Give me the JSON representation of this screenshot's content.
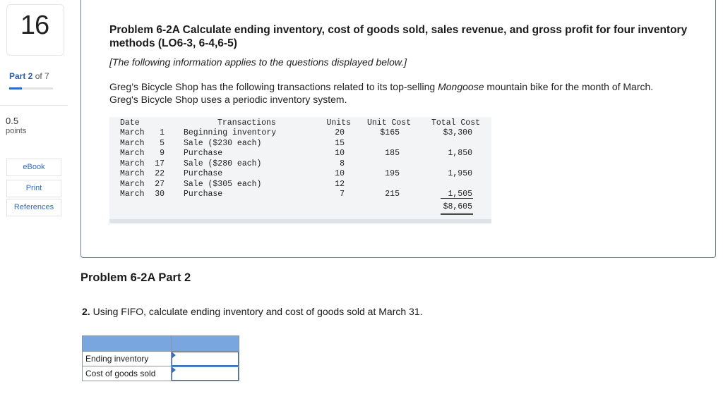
{
  "sidebar": {
    "question_number": "16",
    "part_prefix": "Part 2",
    "part_suffix": "of 7",
    "part_progress": 0.2857,
    "points_value": "0.5",
    "points_label": "points",
    "buttons": {
      "ebook": "eBook",
      "print": "Print",
      "references": "References"
    }
  },
  "problem": {
    "title": "Problem 6-2A Calculate ending inventory, cost of goods sold, sales revenue, and gross profit for four inventory methods (LO6-3, 6-4,6-5)",
    "note": "[The following information applies to the questions displayed below.]",
    "paragraph_before": "Greg’s Bicycle Shop has the following transactions related to its top-selling ",
    "paragraph_italic": "Mongoose",
    "paragraph_after": " mountain bike for the month of March. Greg's Bicycle Shop uses a periodic inventory system."
  },
  "transactions": {
    "headers": {
      "date": "Date",
      "transactions": "Transactions",
      "units": "Units",
      "unit_cost": "Unit Cost",
      "total_cost": "Total Cost"
    },
    "rows": [
      {
        "month": "March",
        "day": "1",
        "desc": "Beginning inventory",
        "units": "20",
        "unit_cost": "$165",
        "total_cost": "$3,300"
      },
      {
        "month": "March",
        "day": "5",
        "desc": "Sale ($230 each)",
        "units": "15",
        "unit_cost": "",
        "total_cost": ""
      },
      {
        "month": "March",
        "day": "9",
        "desc": "Purchase",
        "units": "10",
        "unit_cost": "185",
        "total_cost": "1,850"
      },
      {
        "month": "March",
        "day": "17",
        "desc": "Sale ($280 each)",
        "units": "8",
        "unit_cost": "",
        "total_cost": ""
      },
      {
        "month": "March",
        "day": "22",
        "desc": "Purchase",
        "units": "10",
        "unit_cost": "195",
        "total_cost": "1,950"
      },
      {
        "month": "March",
        "day": "27",
        "desc": "Sale ($305 each)",
        "units": "12",
        "unit_cost": "",
        "total_cost": ""
      },
      {
        "month": "March",
        "day": "30",
        "desc": "Purchase",
        "units": "7",
        "unit_cost": "215",
        "total_cost": "1,505"
      }
    ],
    "grand_total": "$8,605"
  },
  "part2": {
    "heading": "Problem 6-2A Part 2",
    "question_number": "2.",
    "question_text": " Using FIFO, calculate ending inventory and cost of goods sold at March 31.",
    "answer_rows": [
      {
        "label": "Ending inventory",
        "value": ""
      },
      {
        "label": "Cost of goods sold",
        "value": ""
      }
    ]
  }
}
